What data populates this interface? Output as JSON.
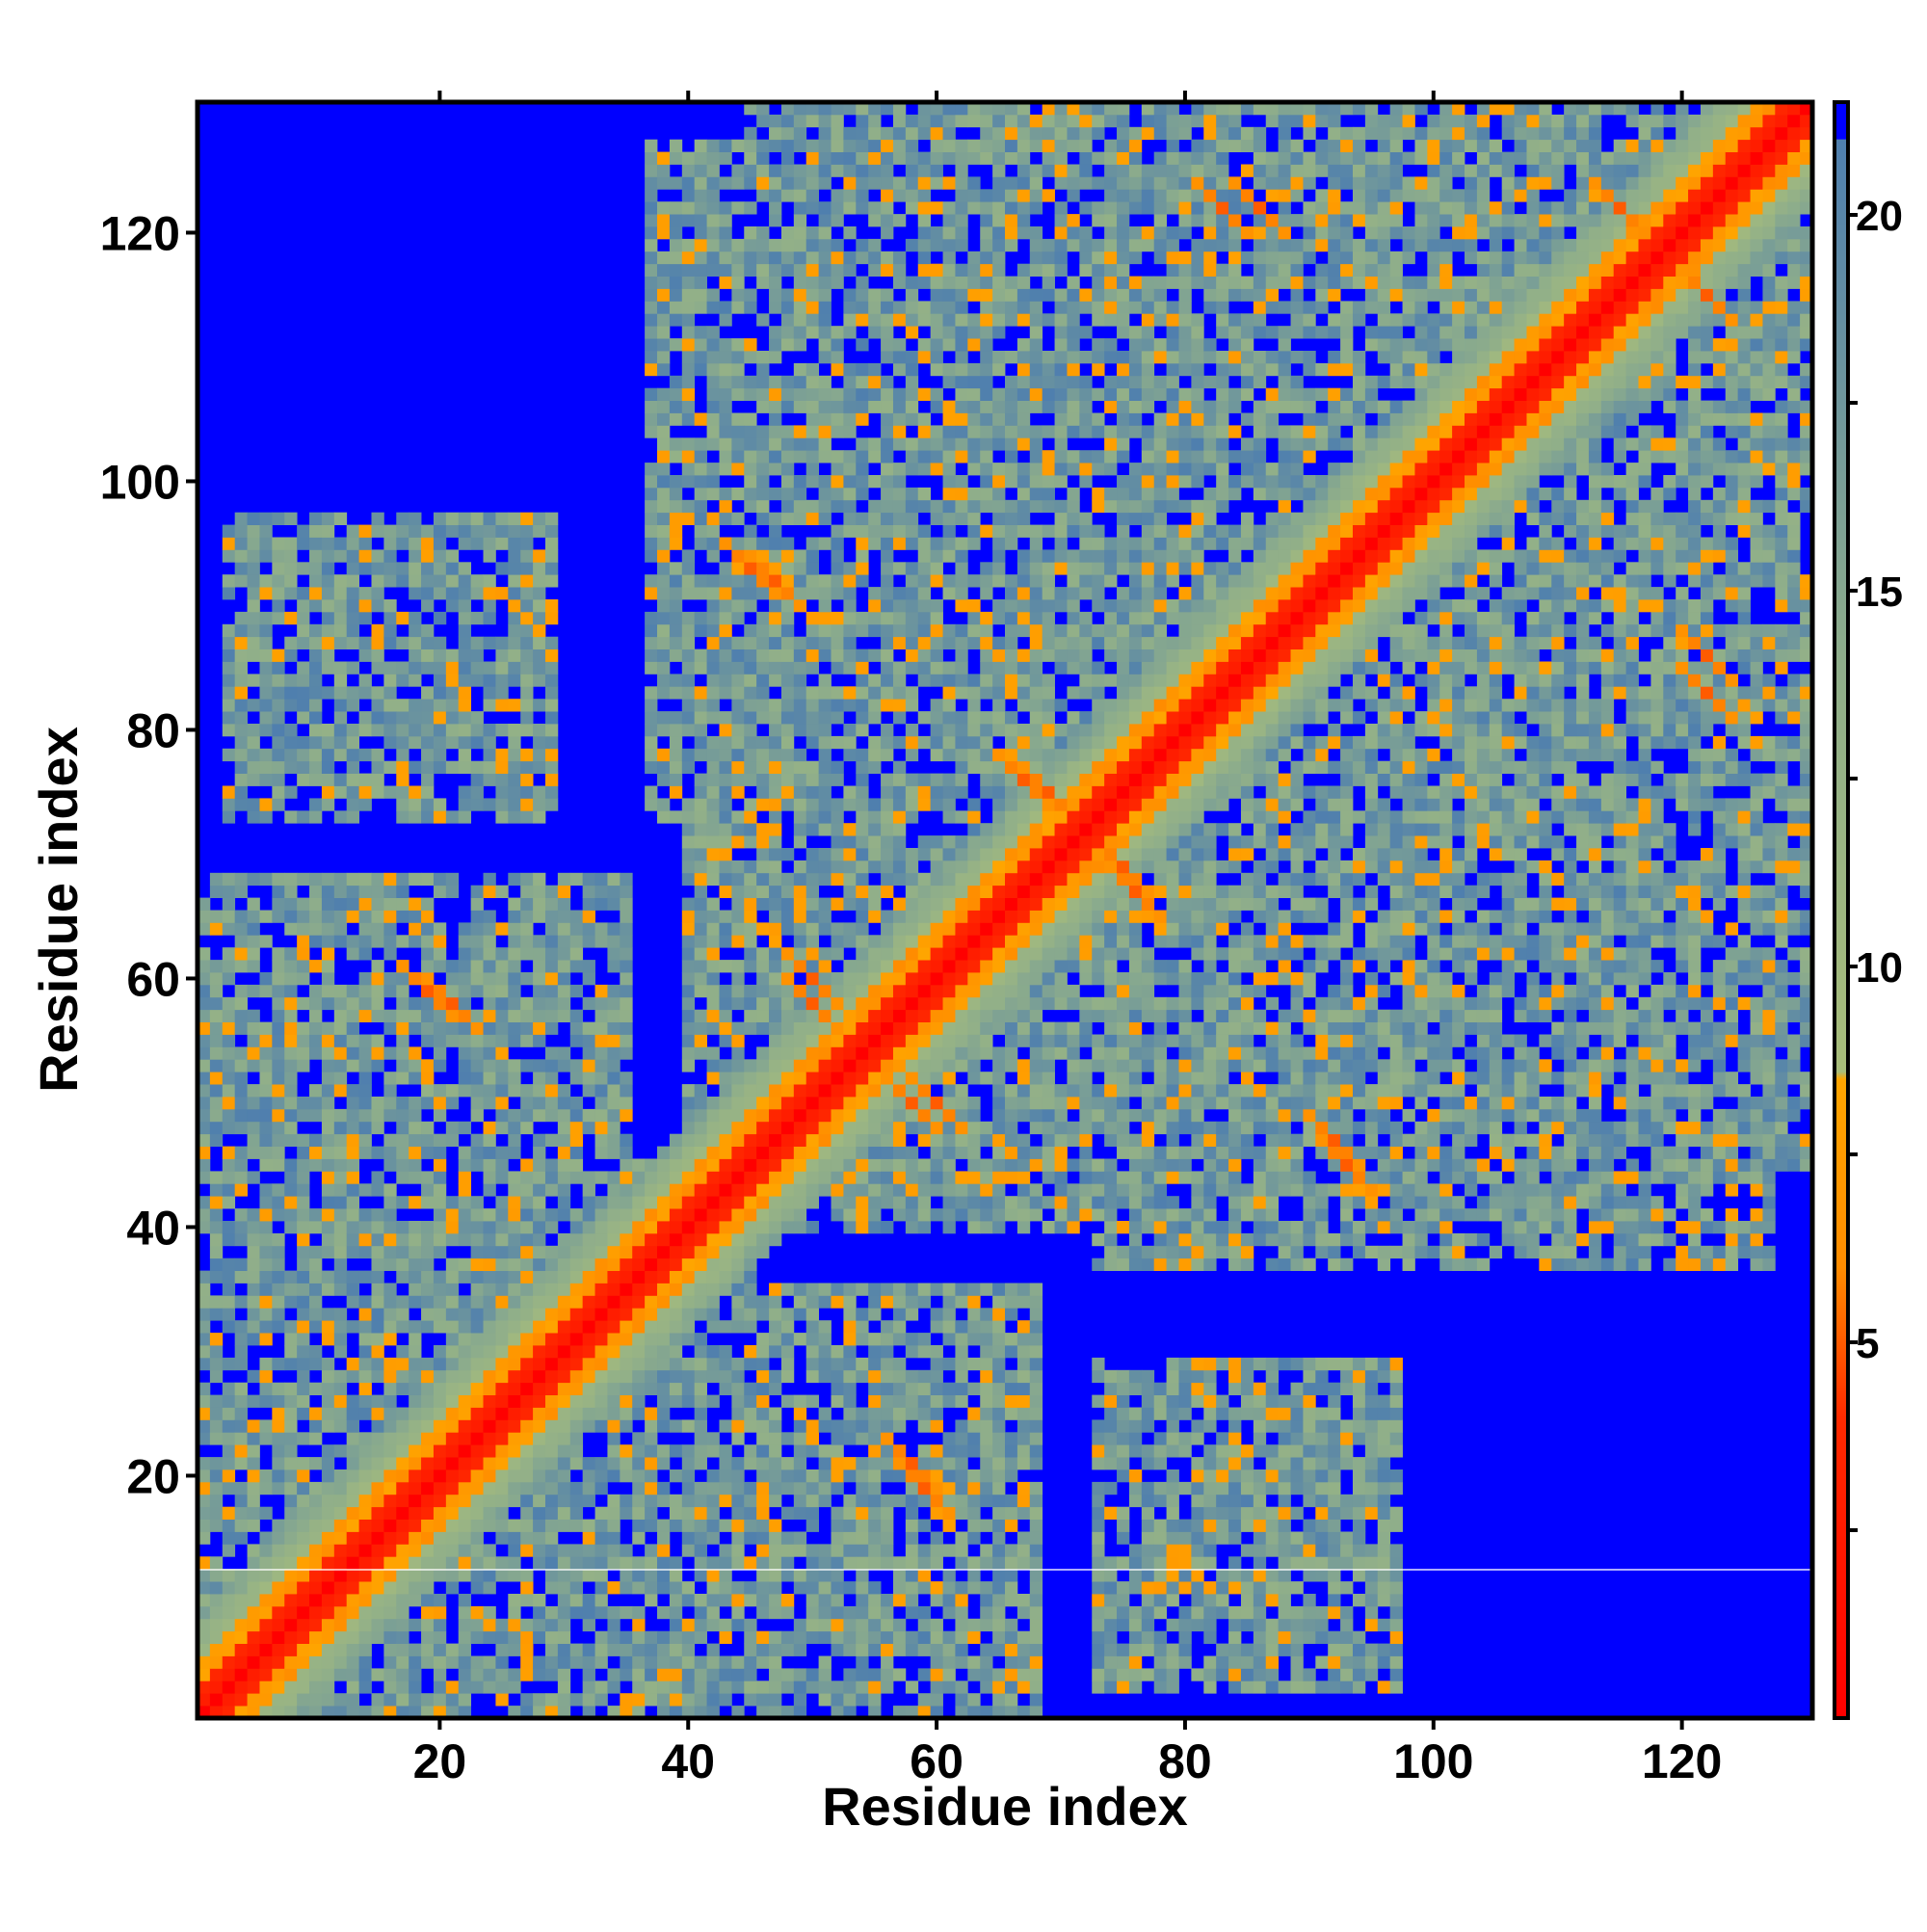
{
  "chart_data": {
    "type": "heatmap",
    "title": "",
    "xlabel": "Residue index",
    "ylabel": "Residue index",
    "xlim": [
      0.5,
      130.5
    ],
    "ylim": [
      0.5,
      130.5
    ],
    "n_residues": 130,
    "x_ticks": [
      20,
      40,
      60,
      80,
      100,
      120
    ],
    "y_ticks": [
      20,
      40,
      60,
      80,
      100,
      120
    ],
    "x_tick_labels": [
      "20",
      "40",
      "60",
      "80",
      "100",
      "120"
    ],
    "y_tick_labels": [
      "20",
      "40",
      "60",
      "80",
      "100",
      "120"
    ],
    "colorbar": {
      "range": [
        0,
        21.5
      ],
      "ticks": [
        5,
        10,
        15,
        20
      ],
      "tick_labels": [
        "5",
        "10",
        "15",
        "20"
      ],
      "stops": [
        {
          "value": 0,
          "color": "#ff0000"
        },
        {
          "value": 4,
          "color": "#ff2a00"
        },
        {
          "value": 6,
          "color": "#ff8c00"
        },
        {
          "value": 8.5,
          "color": "#ffa500"
        },
        {
          "value": 8.6,
          "color": "#a8bd7a"
        },
        {
          "value": 14,
          "color": "#8fae8a"
        },
        {
          "value": 21,
          "color": "#4f7fae"
        },
        {
          "value": 21.01,
          "color": "#0000ff"
        }
      ]
    },
    "cutoff_color": "#0000ff",
    "values_description_note": null,
    "contact_clusters": [
      {
        "x": [
          1,
          45
        ],
        "y": [
          1,
          45
        ],
        "level": "near"
      },
      {
        "x": [
          1,
          35
        ],
        "y": [
          45,
          68
        ],
        "level": "mid"
      },
      {
        "x": [
          3,
          29
        ],
        "y": [
          73,
          95
        ],
        "level": "far"
      },
      {
        "x": [
          38,
          67
        ],
        "y": [
          1,
          30
        ],
        "level": "mid"
      },
      {
        "x": [
          54,
          67
        ],
        "y": [
          6,
          33
        ],
        "level": "mid"
      },
      {
        "x": [
          37,
          54
        ],
        "y": [
          73,
          127
        ],
        "level": "mid"
      },
      {
        "x": [
          43,
          100
        ],
        "y": [
          40,
          75
        ],
        "level": "mid"
      },
      {
        "x": [
          74,
          97
        ],
        "y": [
          3,
          29
        ],
        "level": "far"
      },
      {
        "x": [
          56,
          130
        ],
        "y": [
          55,
          130
        ],
        "level": "mid"
      },
      {
        "x": [
          110,
          130
        ],
        "y": [
          45,
          115
        ],
        "level": "mid"
      },
      {
        "x": [
          68,
          102
        ],
        "y": [
          105,
          130
        ],
        "level": "mid"
      }
    ],
    "hot_spots": [
      {
        "x": 50,
        "y": 60
      },
      {
        "x": 19,
        "y": 59
      },
      {
        "x": 58,
        "y": 50
      },
      {
        "x": 58,
        "y": 21
      },
      {
        "x": 83,
        "y": 122
      },
      {
        "x": 115,
        "y": 122
      },
      {
        "x": 122,
        "y": 115
      },
      {
        "x": 122,
        "y": 86
      },
      {
        "x": 92,
        "y": 47
      },
      {
        "x": 45,
        "y": 93
      },
      {
        "x": 67,
        "y": 76
      },
      {
        "x": 75,
        "y": 69
      }
    ]
  }
}
